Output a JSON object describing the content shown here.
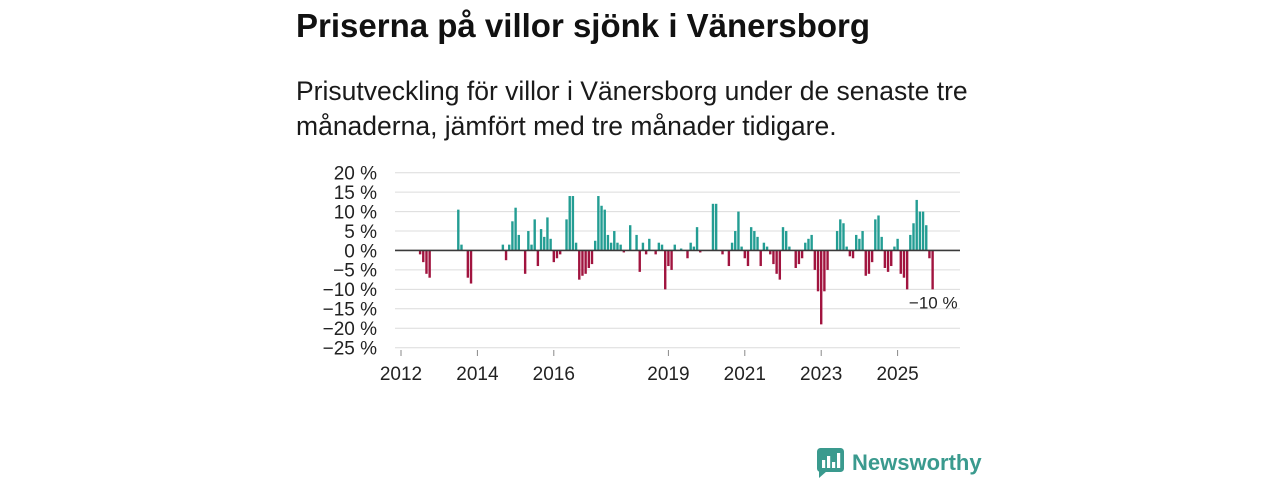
{
  "colors": {
    "positive": "#239d93",
    "negative": "#a1143f",
    "brand": "#3a9a8e",
    "grid": "#dcdcdc",
    "zero_line": "#3a3a3a",
    "axis_tick": "#888888"
  },
  "branding": {
    "logo_text": "Newsworthy",
    "logo_icon": "newsworthy-logo-icon"
  },
  "chart_data": {
    "type": "bar",
    "title": "Priserna på villor sjönk i Vänersborg",
    "subtitle": "Prisutveckling för villor i Vänersborg under de senaste tre månaderna, jämfört med tre månader tidigare.",
    "ylim": [
      -25,
      20
    ],
    "grid": true,
    "yticks": [
      {
        "value": 20,
        "label": "20 %"
      },
      {
        "value": 15,
        "label": "15 %"
      },
      {
        "value": 10,
        "label": "10 %"
      },
      {
        "value": 5,
        "label": "5 %"
      },
      {
        "value": 0,
        "label": "0 %"
      },
      {
        "value": -5,
        "label": "−5 %"
      },
      {
        "value": -10,
        "label": "−10 %"
      },
      {
        "value": -15,
        "label": "−15 %"
      },
      {
        "value": -20,
        "label": "−20 %"
      },
      {
        "value": -25,
        "label": "−25 %"
      }
    ],
    "xticks": [
      2012,
      2014,
      2016,
      2019,
      2021,
      2023,
      2025
    ],
    "annotation": {
      "year": 2025,
      "month": 12,
      "value": -10,
      "label": "−10 %"
    },
    "points": [
      {
        "year": 2012,
        "month": 7,
        "value": -1
      },
      {
        "year": 2012,
        "month": 8,
        "value": -3
      },
      {
        "year": 2012,
        "month": 9,
        "value": -6
      },
      {
        "year": 2012,
        "month": 10,
        "value": -7
      },
      {
        "year": 2013,
        "month": 7,
        "value": 10.5
      },
      {
        "year": 2013,
        "month": 8,
        "value": 1.5
      },
      {
        "year": 2013,
        "month": 10,
        "value": -7
      },
      {
        "year": 2013,
        "month": 11,
        "value": -8.5
      },
      {
        "year": 2014,
        "month": 9,
        "value": 1.5
      },
      {
        "year": 2014,
        "month": 10,
        "value": -2.5
      },
      {
        "year": 2014,
        "month": 11,
        "value": 1.5
      },
      {
        "year": 2014,
        "month": 12,
        "value": 7.5
      },
      {
        "year": 2015,
        "month": 1,
        "value": 11
      },
      {
        "year": 2015,
        "month": 2,
        "value": 4
      },
      {
        "year": 2015,
        "month": 4,
        "value": -6
      },
      {
        "year": 2015,
        "month": 5,
        "value": 5
      },
      {
        "year": 2015,
        "month": 6,
        "value": 1.5
      },
      {
        "year": 2015,
        "month": 7,
        "value": 8
      },
      {
        "year": 2015,
        "month": 8,
        "value": -4
      },
      {
        "year": 2015,
        "month": 9,
        "value": 5.5
      },
      {
        "year": 2015,
        "month": 10,
        "value": 3.5
      },
      {
        "year": 2015,
        "month": 11,
        "value": 8.5
      },
      {
        "year": 2015,
        "month": 12,
        "value": 3
      },
      {
        "year": 2016,
        "month": 1,
        "value": -3
      },
      {
        "year": 2016,
        "month": 2,
        "value": -2
      },
      {
        "year": 2016,
        "month": 3,
        "value": -1
      },
      {
        "year": 2016,
        "month": 5,
        "value": 8
      },
      {
        "year": 2016,
        "month": 6,
        "value": 14
      },
      {
        "year": 2016,
        "month": 7,
        "value": 14
      },
      {
        "year": 2016,
        "month": 8,
        "value": 2
      },
      {
        "year": 2016,
        "month": 9,
        "value": -7.5
      },
      {
        "year": 2016,
        "month": 10,
        "value": -6.5
      },
      {
        "year": 2016,
        "month": 11,
        "value": -6
      },
      {
        "year": 2016,
        "month": 12,
        "value": -4.5
      },
      {
        "year": 2017,
        "month": 1,
        "value": -3.5
      },
      {
        "year": 2017,
        "month": 2,
        "value": 2.5
      },
      {
        "year": 2017,
        "month": 3,
        "value": 14
      },
      {
        "year": 2017,
        "month": 4,
        "value": 11.5
      },
      {
        "year": 2017,
        "month": 5,
        "value": 10.5
      },
      {
        "year": 2017,
        "month": 6,
        "value": 4
      },
      {
        "year": 2017,
        "month": 7,
        "value": 2
      },
      {
        "year": 2017,
        "month": 8,
        "value": 5
      },
      {
        "year": 2017,
        "month": 9,
        "value": 2
      },
      {
        "year": 2017,
        "month": 10,
        "value": 1.5
      },
      {
        "year": 2017,
        "month": 11,
        "value": -0.5
      },
      {
        "year": 2018,
        "month": 1,
        "value": 6.5
      },
      {
        "year": 2018,
        "month": 3,
        "value": 4
      },
      {
        "year": 2018,
        "month": 4,
        "value": -5.5
      },
      {
        "year": 2018,
        "month": 5,
        "value": 2
      },
      {
        "year": 2018,
        "month": 6,
        "value": -1
      },
      {
        "year": 2018,
        "month": 7,
        "value": 3
      },
      {
        "year": 2018,
        "month": 9,
        "value": -1
      },
      {
        "year": 2018,
        "month": 10,
        "value": 2
      },
      {
        "year": 2018,
        "month": 11,
        "value": 1.5
      },
      {
        "year": 2018,
        "month": 12,
        "value": -10
      },
      {
        "year": 2019,
        "month": 1,
        "value": -4
      },
      {
        "year": 2019,
        "month": 2,
        "value": -5
      },
      {
        "year": 2019,
        "month": 3,
        "value": 1.5
      },
      {
        "year": 2019,
        "month": 5,
        "value": 0.5
      },
      {
        "year": 2019,
        "month": 7,
        "value": -2
      },
      {
        "year": 2019,
        "month": 8,
        "value": 2
      },
      {
        "year": 2019,
        "month": 9,
        "value": 1
      },
      {
        "year": 2019,
        "month": 10,
        "value": 6
      },
      {
        "year": 2019,
        "month": 11,
        "value": -0.5
      },
      {
        "year": 2020,
        "month": 3,
        "value": 12
      },
      {
        "year": 2020,
        "month": 4,
        "value": 12
      },
      {
        "year": 2020,
        "month": 6,
        "value": -1
      },
      {
        "year": 2020,
        "month": 8,
        "value": -4
      },
      {
        "year": 2020,
        "month": 9,
        "value": 2
      },
      {
        "year": 2020,
        "month": 10,
        "value": 5
      },
      {
        "year": 2020,
        "month": 11,
        "value": 10
      },
      {
        "year": 2020,
        "month": 12,
        "value": 1
      },
      {
        "year": 2021,
        "month": 1,
        "value": -2
      },
      {
        "year": 2021,
        "month": 2,
        "value": -4
      },
      {
        "year": 2021,
        "month": 3,
        "value": 6
      },
      {
        "year": 2021,
        "month": 4,
        "value": 5
      },
      {
        "year": 2021,
        "month": 5,
        "value": 3.5
      },
      {
        "year": 2021,
        "month": 6,
        "value": -4
      },
      {
        "year": 2021,
        "month": 7,
        "value": 2
      },
      {
        "year": 2021,
        "month": 8,
        "value": 1
      },
      {
        "year": 2021,
        "month": 9,
        "value": -1
      },
      {
        "year": 2021,
        "month": 10,
        "value": -3.5
      },
      {
        "year": 2021,
        "month": 11,
        "value": -6
      },
      {
        "year": 2021,
        "month": 12,
        "value": -7.5
      },
      {
        "year": 2022,
        "month": 1,
        "value": 6
      },
      {
        "year": 2022,
        "month": 2,
        "value": 5
      },
      {
        "year": 2022,
        "month": 3,
        "value": 1
      },
      {
        "year": 2022,
        "month": 5,
        "value": -4.5
      },
      {
        "year": 2022,
        "month": 6,
        "value": -3.5
      },
      {
        "year": 2022,
        "month": 7,
        "value": -2
      },
      {
        "year": 2022,
        "month": 8,
        "value": 2
      },
      {
        "year": 2022,
        "month": 9,
        "value": 3
      },
      {
        "year": 2022,
        "month": 10,
        "value": 4
      },
      {
        "year": 2022,
        "month": 11,
        "value": -5
      },
      {
        "year": 2022,
        "month": 12,
        "value": -10.5
      },
      {
        "year": 2023,
        "month": 1,
        "value": -19
      },
      {
        "year": 2023,
        "month": 2,
        "value": -10.5
      },
      {
        "year": 2023,
        "month": 3,
        "value": -5
      },
      {
        "year": 2023,
        "month": 6,
        "value": 5
      },
      {
        "year": 2023,
        "month": 7,
        "value": 8
      },
      {
        "year": 2023,
        "month": 8,
        "value": 7
      },
      {
        "year": 2023,
        "month": 9,
        "value": 1
      },
      {
        "year": 2023,
        "month": 10,
        "value": -1.5
      },
      {
        "year": 2023,
        "month": 11,
        "value": -2
      },
      {
        "year": 2023,
        "month": 12,
        "value": 4
      },
      {
        "year": 2024,
        "month": 1,
        "value": 3
      },
      {
        "year": 2024,
        "month": 2,
        "value": 5
      },
      {
        "year": 2024,
        "month": 3,
        "value": -6.5
      },
      {
        "year": 2024,
        "month": 4,
        "value": -6
      },
      {
        "year": 2024,
        "month": 5,
        "value": -3
      },
      {
        "year": 2024,
        "month": 6,
        "value": 8
      },
      {
        "year": 2024,
        "month": 7,
        "value": 9
      },
      {
        "year": 2024,
        "month": 8,
        "value": 3.5
      },
      {
        "year": 2024,
        "month": 9,
        "value": -4.5
      },
      {
        "year": 2024,
        "month": 10,
        "value": -5.5
      },
      {
        "year": 2024,
        "month": 11,
        "value": -4
      },
      {
        "year": 2024,
        "month": 12,
        "value": 1
      },
      {
        "year": 2025,
        "month": 1,
        "value": 3
      },
      {
        "year": 2025,
        "month": 2,
        "value": -6
      },
      {
        "year": 2025,
        "month": 3,
        "value": -7
      },
      {
        "year": 2025,
        "month": 4,
        "value": -10
      },
      {
        "year": 2025,
        "month": 5,
        "value": 4
      },
      {
        "year": 2025,
        "month": 6,
        "value": 7
      },
      {
        "year": 2025,
        "month": 7,
        "value": 13
      },
      {
        "year": 2025,
        "month": 8,
        "value": 10
      },
      {
        "year": 2025,
        "month": 9,
        "value": 10
      },
      {
        "year": 2025,
        "month": 10,
        "value": 6.5
      },
      {
        "year": 2025,
        "month": 11,
        "value": -2
      },
      {
        "year": 2025,
        "month": 12,
        "value": -10
      }
    ]
  }
}
